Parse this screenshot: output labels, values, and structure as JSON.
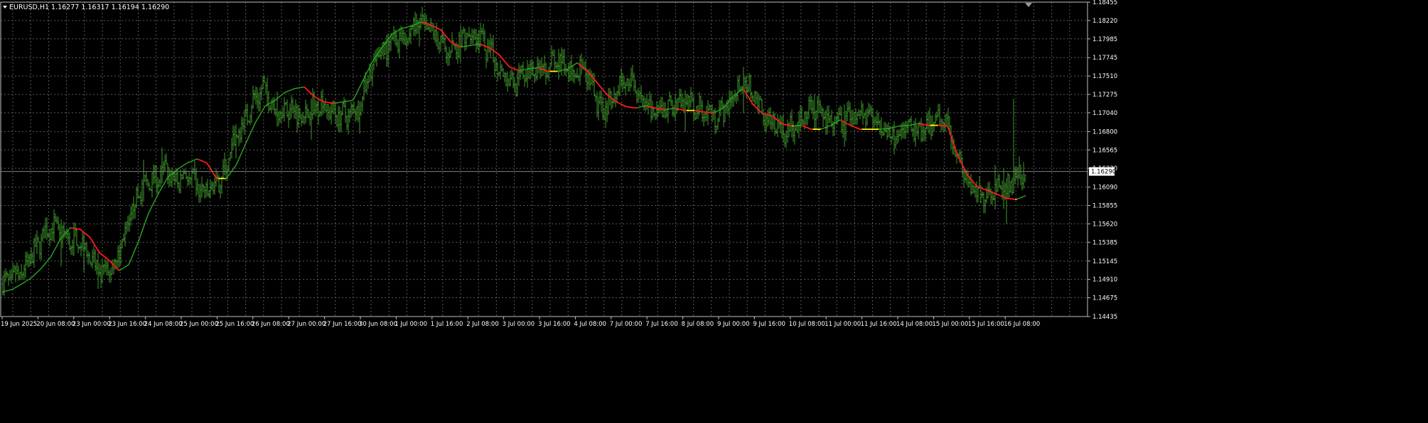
{
  "header": {
    "symbol": "EURUSD,H1",
    "ohlc": "1.16277 1.16317 1.16194 1.16290"
  },
  "colors": {
    "background": "#000000",
    "grid": "#5a5a5a",
    "frame": "#bfbfbf",
    "text": "#ffffff",
    "bars": "#3f9a2c",
    "ma_up": "#2aa821",
    "ma_down": "#ff1a1a",
    "ma_flat": "#ffff00",
    "price_line": "#808080",
    "price_label_bg": "#ffffff",
    "price_label_text": "#000000"
  },
  "chart_data": {
    "type": "line",
    "title": "",
    "xlabel": "",
    "ylabel": "",
    "ylim": [
      1.14435,
      1.18455
    ],
    "grid": true,
    "current_price": "1.16290",
    "y_ticks": [
      "1.18455",
      "1.18220",
      "1.17985",
      "1.17745",
      "1.17510",
      "1.17275",
      "1.17040",
      "1.16800",
      "1.16565",
      "1.16330",
      "1.16090",
      "1.15855",
      "1.15620",
      "1.15385",
      "1.15145",
      "1.14910",
      "1.14675",
      "1.14435"
    ],
    "x_ticks": [
      "19 Jun 2025",
      "20 Jun 08:00",
      "23 Jun 00:00",
      "23 Jun 16:00",
      "24 Jun 08:00",
      "25 Jun 00:00",
      "25 Jun 16:00",
      "26 Jun 08:00",
      "27 Jun 00:00",
      "27 Jun 16:00",
      "30 Jun 08:00",
      "1 Jul 00:00",
      "1 Jul 16:00",
      "2 Jul 08:00",
      "3 Jul 00:00",
      "3 Jul 16:00",
      "4 Jul 08:00",
      "7 Jul 00:00",
      "7 Jul 16:00",
      "8 Jul 08:00",
      "9 Jul 00:00",
      "9 Jul 16:00",
      "10 Jul 08:00",
      "11 Jul 00:00",
      "11 Jul 16:00",
      "14 Jul 08:00",
      "15 Jul 00:00",
      "15 Jul 16:00",
      "16 Jul 08:00"
    ],
    "price_anchors": [
      1.1485,
      1.1492,
      1.1498,
      1.152,
      1.1543,
      1.156,
      1.155,
      1.154,
      1.1545,
      1.152,
      1.1495,
      1.15,
      1.1525,
      1.156,
      1.16,
      1.1615,
      1.162,
      1.1632,
      1.1615,
      1.1625,
      1.1612,
      1.16,
      1.161,
      1.163,
      1.1665,
      1.1693,
      1.172,
      1.1735,
      1.1715,
      1.1705,
      1.1712,
      1.17,
      1.171,
      1.1718,
      1.1705,
      1.17,
      1.1702,
      1.1715,
      1.175,
      1.178,
      1.179,
      1.18,
      1.1803,
      1.182,
      1.181,
      1.1802,
      1.178,
      1.179,
      1.1803,
      1.1805,
      1.179,
      1.177,
      1.1755,
      1.174,
      1.1752,
      1.176,
      1.1765,
      1.1768,
      1.1765,
      1.1755,
      1.176,
      1.1738,
      1.1705,
      1.172,
      1.174,
      1.1745,
      1.173,
      1.1705,
      1.17,
      1.1712,
      1.1715,
      1.1715,
      1.171,
      1.1705,
      1.17,
      1.171,
      1.173,
      1.1745,
      1.1725,
      1.17,
      1.1695,
      1.168,
      1.169,
      1.17,
      1.171,
      1.1702,
      1.169,
      1.1688,
      1.17,
      1.1703,
      1.17,
      1.1685,
      1.1678,
      1.168,
      1.1685,
      1.1675,
      1.1685,
      1.1693,
      1.1692,
      1.165,
      1.1615,
      1.1598,
      1.16,
      1.161,
      1.1605,
      1.162,
      1.1629
    ],
    "ma_anchors": [
      1.1475,
      1.1478,
      1.1485,
      1.1493,
      1.1505,
      1.152,
      1.1543,
      1.1557,
      1.1555,
      1.1545,
      1.1525,
      1.1515,
      1.1502,
      1.151,
      1.154,
      1.1575,
      1.16,
      1.1622,
      1.1632,
      1.164,
      1.1645,
      1.164,
      1.162,
      1.162,
      1.1637,
      1.1665,
      1.1692,
      1.1713,
      1.172,
      1.173,
      1.1735,
      1.1737,
      1.1725,
      1.1718,
      1.1716,
      1.1718,
      1.172,
      1.1745,
      1.177,
      1.1788,
      1.1805,
      1.1812,
      1.1815,
      1.182,
      1.1816,
      1.181,
      1.1795,
      1.1788,
      1.179,
      1.1792,
      1.1787,
      1.1778,
      1.1763,
      1.1758,
      1.176,
      1.1762,
      1.1757,
      1.1757,
      1.176,
      1.1768,
      1.1758,
      1.1743,
      1.1728,
      1.1718,
      1.1712,
      1.171,
      1.1713,
      1.171,
      1.1708,
      1.171,
      1.1707,
      1.1707,
      1.1705,
      1.1704,
      1.171,
      1.1725,
      1.1735,
      1.1715,
      1.1703,
      1.17,
      1.169,
      1.1687,
      1.1688,
      1.1683,
      1.1683,
      1.1688,
      1.1695,
      1.1688,
      1.1683,
      1.1683,
      1.1683,
      1.1684,
      1.1687,
      1.1688,
      1.169,
      1.1688,
      1.1688,
      1.1687,
      1.165,
      1.1625,
      1.161,
      1.1605,
      1.16,
      1.1595,
      1.1593,
      1.1598
    ]
  }
}
